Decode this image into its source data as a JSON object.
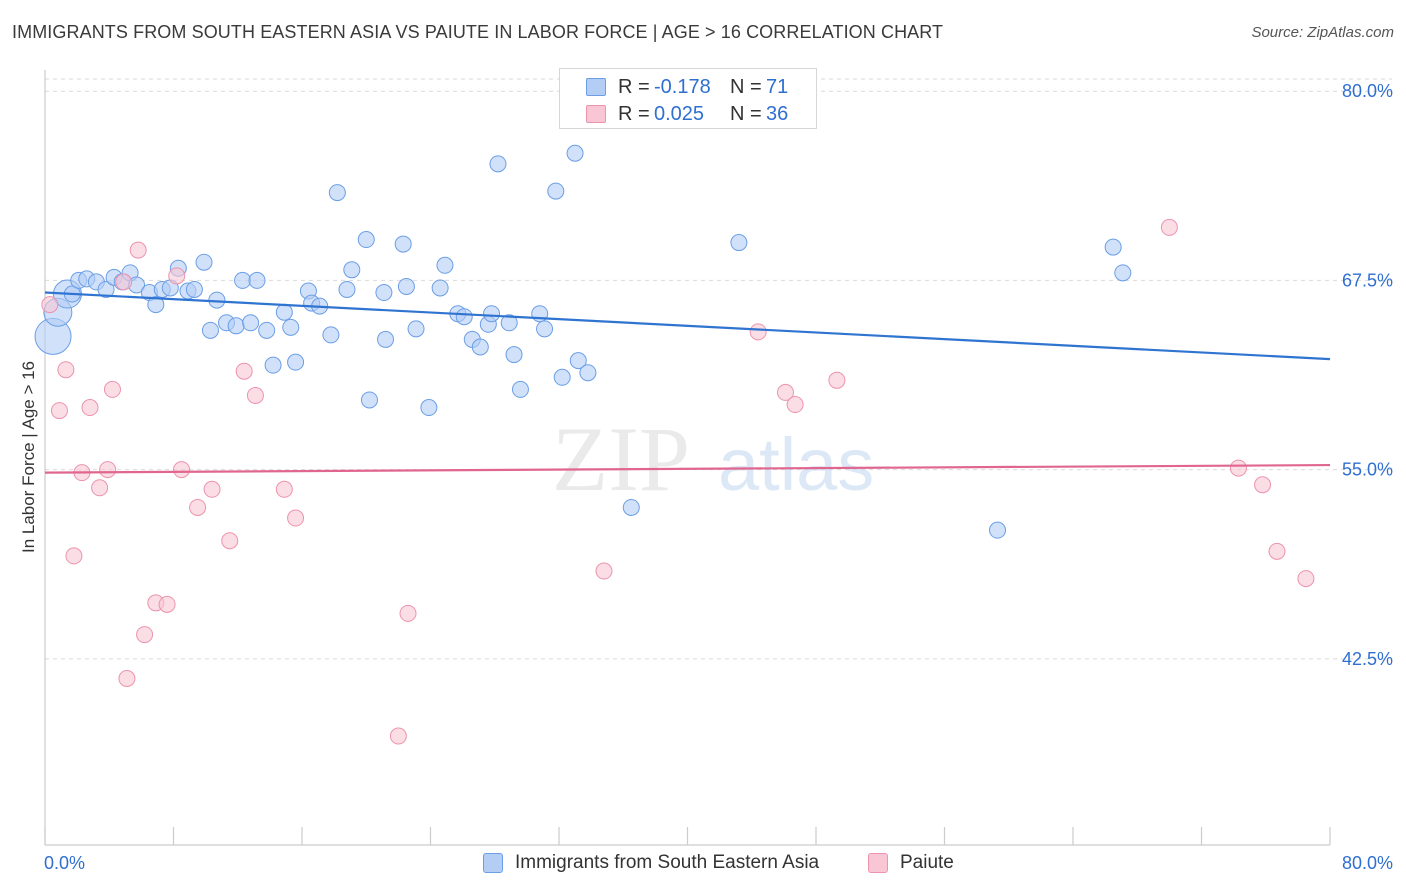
{
  "header": {
    "title": "IMMIGRANTS FROM SOUTH EASTERN ASIA VS PAIUTE IN LABOR FORCE | AGE > 16 CORRELATION CHART",
    "source": "Source: ZipAtlas.com"
  },
  "watermark": {
    "zip": "ZIP",
    "atlas": "atlas"
  },
  "legend_top": {
    "rows": [
      {
        "r_label": "R =",
        "r_value": "-0.178",
        "n_label": "N =",
        "n_value": "71"
      },
      {
        "r_label": "R =",
        "r_value": "0.025",
        "n_label": "N =",
        "n_value": "36"
      }
    ]
  },
  "legend_bottom": {
    "items": [
      "Immigrants from South Eastern Asia",
      "Paiute"
    ]
  },
  "colors": {
    "blue_fill": "#b3cdf5",
    "blue_stroke": "#6b9ee6",
    "blue_line": "#2f74d0",
    "pink_fill": "#f8c6d5",
    "pink_stroke": "#ec93ad",
    "pink_line": "#e06690",
    "tick_label": "#2f6fd0",
    "grid": "#d9d9d9",
    "axis": "#cccccc"
  },
  "chart_data": {
    "type": "scatter",
    "title": "IMMIGRANTS FROM SOUTH EASTERN ASIA VS PAIUTE IN LABOR FORCE | AGE > 16 CORRELATION CHART",
    "xlabel": "",
    "ylabel": "In Labor Force | Age > 16",
    "xlim": [
      0,
      80
    ],
    "ylim": [
      30.2,
      81.4
    ],
    "x_tick_labels": [
      {
        "value": 0,
        "label": "0.0%"
      },
      {
        "value": 80,
        "label": "80.0%"
      }
    ],
    "y_tick_labels": [
      {
        "value": 80,
        "label": "80.0%"
      },
      {
        "value": 67.5,
        "label": "67.5%"
      },
      {
        "value": 55,
        "label": "55.0%"
      },
      {
        "value": 42.5,
        "label": "42.5%"
      }
    ],
    "x_minor_ticks": [
      0,
      8,
      16,
      24,
      32,
      40,
      48,
      56,
      64,
      72,
      80
    ],
    "grid": true,
    "series": [
      {
        "name": "Immigrants from South Eastern Asia",
        "color": "blue",
        "r": -0.178,
        "n": 71,
        "trend": {
          "x": [
            0,
            80
          ],
          "y": [
            66.7,
            62.3
          ]
        },
        "points": [
          [
            0.5,
            63.8,
            3
          ],
          [
            0.8,
            65.4,
            2
          ],
          [
            1.4,
            66.6,
            2
          ],
          [
            1.7,
            66.6,
            1
          ],
          [
            2.1,
            67.5,
            1
          ],
          [
            2.6,
            67.6,
            1
          ],
          [
            3.2,
            67.4,
            1
          ],
          [
            3.8,
            66.9,
            1
          ],
          [
            4.3,
            67.7,
            1
          ],
          [
            4.8,
            67.4,
            1
          ],
          [
            5.3,
            68.0,
            1
          ],
          [
            5.7,
            67.2,
            1
          ],
          [
            6.5,
            66.7,
            1
          ],
          [
            6.9,
            65.9,
            1
          ],
          [
            7.3,
            66.9,
            1
          ],
          [
            7.8,
            67.0,
            1
          ],
          [
            8.3,
            68.3,
            1
          ],
          [
            8.9,
            66.8,
            1
          ],
          [
            9.3,
            66.9,
            1
          ],
          [
            9.9,
            68.7,
            1
          ],
          [
            10.7,
            66.2,
            1
          ],
          [
            10.3,
            64.2,
            1
          ],
          [
            11.3,
            64.7,
            1
          ],
          [
            11.9,
            64.5,
            1
          ],
          [
            12.3,
            67.5,
            1
          ],
          [
            12.8,
            64.7,
            1
          ],
          [
            13.2,
            67.5,
            1
          ],
          [
            13.8,
            64.2,
            1
          ],
          [
            14.2,
            61.9,
            1
          ],
          [
            14.9,
            65.4,
            1
          ],
          [
            15.3,
            64.4,
            1
          ],
          [
            15.6,
            62.1,
            1
          ],
          [
            16.4,
            66.8,
            1
          ],
          [
            16.6,
            66.0,
            1
          ],
          [
            17.1,
            65.8,
            1
          ],
          [
            17.8,
            63.9,
            1
          ],
          [
            18.2,
            73.3,
            1
          ],
          [
            18.8,
            66.9,
            1
          ],
          [
            19.1,
            68.2,
            1
          ],
          [
            20.0,
            70.2,
            1
          ],
          [
            20.2,
            59.6,
            1
          ],
          [
            21.1,
            66.7,
            1
          ],
          [
            21.2,
            63.6,
            1
          ],
          [
            22.3,
            69.9,
            1
          ],
          [
            22.5,
            67.1,
            1
          ],
          [
            23.1,
            64.3,
            1
          ],
          [
            23.9,
            59.1,
            1
          ],
          [
            24.6,
            67.0,
            1
          ],
          [
            24.9,
            68.5,
            1
          ],
          [
            25.7,
            65.3,
            1
          ],
          [
            26.1,
            65.1,
            1
          ],
          [
            26.6,
            63.6,
            1
          ],
          [
            27.1,
            63.1,
            1
          ],
          [
            27.6,
            64.6,
            1
          ],
          [
            27.8,
            65.3,
            1
          ],
          [
            28.2,
            75.2,
            1
          ],
          [
            28.9,
            64.7,
            1
          ],
          [
            29.2,
            62.6,
            1
          ],
          [
            29.6,
            60.3,
            1
          ],
          [
            30.8,
            65.3,
            1
          ],
          [
            31.1,
            64.3,
            1
          ],
          [
            31.8,
            73.4,
            1
          ],
          [
            32.2,
            61.1,
            1
          ],
          [
            33.0,
            75.9,
            1
          ],
          [
            33.2,
            62.2,
            1
          ],
          [
            33.8,
            61.4,
            1
          ],
          [
            36.5,
            52.5,
            1
          ],
          [
            43.2,
            70.0,
            1
          ],
          [
            59.3,
            51.0,
            1
          ],
          [
            66.5,
            69.7,
            1
          ],
          [
            67.1,
            68.0,
            1
          ]
        ]
      },
      {
        "name": "Paiute",
        "color": "pink",
        "r": 0.025,
        "n": 36,
        "trend": {
          "x": [
            0,
            80
          ],
          "y": [
            54.8,
            55.3
          ]
        },
        "points": [
          [
            0.3,
            65.9,
            1
          ],
          [
            0.9,
            58.9,
            1
          ],
          [
            1.3,
            61.6,
            1
          ],
          [
            1.8,
            49.3,
            1
          ],
          [
            2.3,
            54.8,
            1
          ],
          [
            2.8,
            59.1,
            1
          ],
          [
            3.4,
            53.8,
            1
          ],
          [
            3.9,
            55.0,
            1
          ],
          [
            4.2,
            60.3,
            1
          ],
          [
            4.9,
            67.4,
            1
          ],
          [
            5.1,
            41.2,
            1
          ],
          [
            5.8,
            69.5,
            1
          ],
          [
            6.2,
            44.1,
            1
          ],
          [
            6.9,
            46.2,
            1
          ],
          [
            7.6,
            46.1,
            1
          ],
          [
            8.2,
            67.8,
            1
          ],
          [
            8.5,
            55.0,
            1
          ],
          [
            9.5,
            52.5,
            1
          ],
          [
            10.4,
            53.7,
            1
          ],
          [
            11.5,
            50.3,
            1
          ],
          [
            12.4,
            61.5,
            1
          ],
          [
            13.1,
            59.9,
            1
          ],
          [
            14.9,
            53.7,
            1
          ],
          [
            15.6,
            51.8,
            1
          ],
          [
            22.0,
            37.4,
            1
          ],
          [
            22.6,
            45.5,
            1
          ],
          [
            34.8,
            48.3,
            1
          ],
          [
            44.4,
            64.1,
            1
          ],
          [
            46.1,
            60.1,
            1
          ],
          [
            46.7,
            59.3,
            1
          ],
          [
            49.3,
            60.9,
            1
          ],
          [
            70.0,
            71.0,
            1
          ],
          [
            74.3,
            55.1,
            1
          ],
          [
            75.8,
            54.0,
            1
          ],
          [
            76.7,
            49.6,
            1
          ],
          [
            78.5,
            47.8,
            1
          ]
        ]
      }
    ]
  }
}
